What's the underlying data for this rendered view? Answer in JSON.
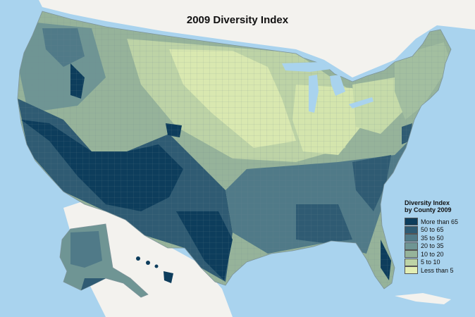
{
  "map": {
    "title": "2009 Diversity Index",
    "colors": {
      "ocean": "#a9d3ee",
      "land_outside": "#f3f2ee",
      "county_border": "#6f8a92"
    }
  },
  "legend": {
    "title_line1": "Diversity Index",
    "title_line2": "by County 2009",
    "items": [
      {
        "label": "More than 65",
        "color": "#0d3d5c"
      },
      {
        "label": "50 to 65",
        "color": "#2f5b73"
      },
      {
        "label": "35 to 50",
        "color": "#507a88"
      },
      {
        "label": "20 to 35",
        "color": "#6f9594"
      },
      {
        "label": "10 to 20",
        "color": "#96b39a"
      },
      {
        "label": "5 to 10",
        "color": "#bdd3a6"
      },
      {
        "label": "Less than 5",
        "color": "#e3eeb3"
      }
    ]
  }
}
